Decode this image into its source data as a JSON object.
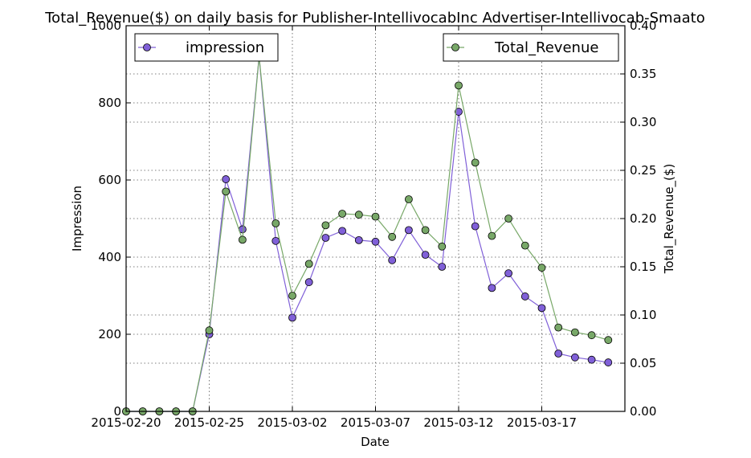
{
  "chart_data": {
    "type": "line",
    "title": "Total_Revenue($) on daily basis for Publisher-IntellivocabInc Advertiser-Intellivocab-Smaato",
    "xlabel": "Date",
    "ylabel_left": "Impression",
    "ylabel_right": "Total_Revenue_($)",
    "x_tick_labels": [
      "2015-02-20",
      "2015-02-25",
      "2015-03-02",
      "2015-03-07",
      "2015-03-12",
      "2015-03-17"
    ],
    "x_tick_indices": [
      0,
      5,
      10,
      15,
      20,
      25
    ],
    "x_count": 30,
    "ylim_left": [
      0,
      1000
    ],
    "yticks_left": [
      0,
      200,
      400,
      600,
      800,
      1000
    ],
    "ylim_right": [
      0,
      0.4
    ],
    "yticks_right": [
      "0.00",
      "0.05",
      "0.10",
      "0.15",
      "0.20",
      "0.25",
      "0.30",
      "0.35",
      "0.40"
    ],
    "grid": true,
    "series": [
      {
        "name": "impression",
        "axis": "left",
        "color": "#8060d8",
        "legend_position": "top-left",
        "values": [
          0,
          0,
          0,
          0,
          0,
          200,
          602,
          472,
          920,
          442,
          243,
          335,
          450,
          468,
          444,
          440,
          392,
          470,
          406,
          375,
          777,
          480,
          320,
          358,
          298,
          268,
          150,
          140,
          134,
          127
        ]
      },
      {
        "name": "Total_Revenue",
        "axis": "right",
        "color": "#78a868",
        "legend_position": "top-right",
        "values": [
          0,
          0,
          0,
          0,
          0,
          0.084,
          0.228,
          0.178,
          0.368,
          0.195,
          0.12,
          0.153,
          0.193,
          0.205,
          0.204,
          0.202,
          0.181,
          0.22,
          0.188,
          0.171,
          0.338,
          0.258,
          0.182,
          0.2,
          0.172,
          0.149,
          0.087,
          0.082,
          0.079,
          0.074
        ]
      }
    ]
  }
}
